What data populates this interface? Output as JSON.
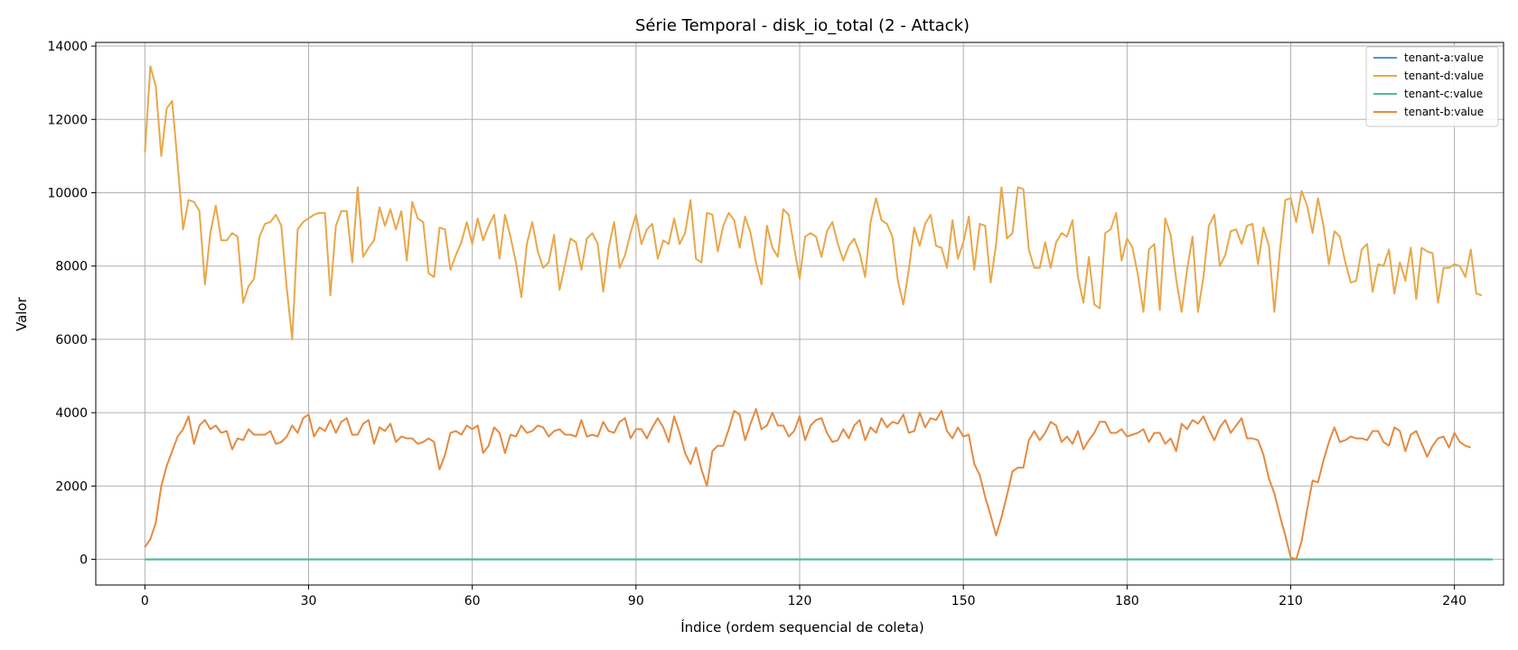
{
  "chart_data": {
    "type": "line",
    "title": "Série Temporal - disk_io_total (2 - Attack)",
    "xlabel": "Índice (ordem sequencial de coleta)",
    "ylabel": "Valor",
    "xlim": [
      -9,
      249
    ],
    "ylim": [
      -700,
      14100
    ],
    "xticks": [
      0,
      30,
      60,
      90,
      120,
      150,
      180,
      210,
      240
    ],
    "yticks": [
      0,
      2000,
      4000,
      6000,
      8000,
      10000,
      12000,
      14000
    ],
    "grid": true,
    "legend_position": "top-right",
    "series": [
      {
        "name": "tenant-a:value",
        "color": "#4c96d7",
        "x_start": 0,
        "x_step": 1,
        "values": [
          0,
          0,
          0,
          0,
          0,
          0,
          0,
          0,
          0,
          0,
          0,
          0,
          0,
          0,
          0,
          0,
          0,
          0,
          0,
          0,
          0,
          0,
          0,
          0,
          0,
          0,
          0,
          0,
          0,
          0,
          0,
          0,
          0,
          0,
          0,
          0,
          0,
          0,
          0,
          0,
          0,
          0,
          0,
          0,
          0,
          0,
          0,
          0,
          0,
          0,
          0,
          0,
          0,
          0,
          0,
          0,
          0,
          0,
          0,
          0,
          0,
          0,
          0,
          0,
          0,
          0,
          0,
          0,
          0,
          0,
          0,
          0,
          0,
          0,
          0,
          0,
          0,
          0,
          0,
          0,
          0,
          0,
          0,
          0,
          0,
          0,
          0,
          0,
          0,
          0,
          0,
          0,
          0,
          0,
          0,
          0,
          0,
          0,
          0,
          0,
          0,
          0,
          0,
          0,
          0,
          0,
          0,
          0,
          0,
          0,
          0,
          0,
          0,
          0,
          0,
          0,
          0,
          0,
          0,
          0,
          0,
          0,
          0,
          0,
          0,
          0,
          0,
          0,
          0,
          0,
          0,
          0,
          0,
          0,
          0,
          0,
          0,
          0,
          0,
          0,
          0,
          0,
          0,
          0,
          0,
          0,
          0,
          0,
          0,
          0,
          0,
          0,
          0,
          0,
          0,
          0,
          0,
          0,
          0,
          0,
          0,
          0,
          0,
          0,
          0,
          0,
          0,
          0,
          0,
          0,
          0,
          0,
          0,
          0,
          0,
          0,
          0,
          0,
          0,
          0,
          0,
          0,
          0,
          0,
          0,
          0,
          0,
          0,
          0,
          0,
          0,
          0,
          0,
          0,
          0,
          0,
          0,
          0,
          0,
          0,
          0,
          0,
          0,
          0,
          0,
          0,
          0,
          0,
          0,
          0,
          0,
          0,
          0,
          0,
          0,
          0,
          0,
          0,
          0,
          0,
          0,
          0,
          0,
          0,
          0,
          0,
          0,
          0,
          0,
          0,
          0,
          0,
          0,
          0,
          0,
          0,
          0,
          0,
          0,
          0,
          0,
          0,
          0,
          0,
          0,
          0,
          0,
          0
        ]
      },
      {
        "name": "tenant-d:value",
        "color": "#e8a84a",
        "x_start": 0,
        "x_step": 1,
        "values": [
          11100,
          13450,
          12900,
          11000,
          12300,
          12500,
          10800,
          9000,
          9800,
          9750,
          9500,
          7500,
          8900,
          9650,
          8700,
          8700,
          8900,
          8800,
          7000,
          7450,
          7650,
          8800,
          9150,
          9200,
          9400,
          9100,
          7400,
          6000,
          9000,
          9200,
          9300,
          9400,
          9450,
          9450,
          7200,
          9100,
          9500,
          9500,
          8100,
          10150,
          8250,
          8500,
          8700,
          9600,
          9100,
          9550,
          9000,
          9500,
          8150,
          9750,
          9300,
          9200,
          7800,
          7700,
          9050,
          9000,
          7900,
          8300,
          8650,
          9200,
          8600,
          9300,
          8700,
          9100,
          9400,
          8200,
          9400,
          8800,
          8100,
          7150,
          8600,
          9200,
          8400,
          7950,
          8100,
          8850,
          7350,
          8050,
          8750,
          8650,
          7900,
          8750,
          8900,
          8600,
          7300,
          8500,
          9200,
          7950,
          8300,
          8900,
          9400,
          8600,
          9000,
          9150,
          8200,
          8700,
          8600,
          9300,
          8600,
          8900,
          9800,
          8200,
          8100,
          9450,
          9400,
          8400,
          9100,
          9450,
          9250,
          8500,
          9350,
          8900,
          8100,
          7500,
          9100,
          8500,
          8250,
          9550,
          9400,
          8500,
          7650,
          8800,
          8900,
          8800,
          8250,
          8950,
          9200,
          8600,
          8150,
          8550,
          8750,
          8350,
          7700,
          9200,
          9850,
          9250,
          9150,
          8800,
          7600,
          6950,
          7900,
          9050,
          8550,
          9150,
          9400,
          8550,
          8500,
          7950,
          9250,
          8200,
          8650,
          9350,
          7900,
          9150,
          9100,
          7550,
          8600,
          10150,
          8750,
          8900,
          10150,
          10100,
          8450,
          7950,
          7950,
          8650,
          7950,
          8650,
          8900,
          8800,
          9250,
          7700,
          7000,
          8250,
          6950,
          6850,
          8900,
          9000,
          9450,
          8150,
          8750,
          8500,
          7750,
          6750,
          8450,
          8600,
          6800,
          9300,
          8850,
          7650,
          6750,
          7900,
          8800,
          6750,
          7700,
          9100,
          9400,
          8000,
          8300,
          8950,
          9000,
          8600,
          9100,
          9150,
          8050,
          9050,
          8550,
          6750,
          8400,
          9800,
          9850,
          9200,
          10050,
          9650,
          8900,
          9850,
          9100,
          8050,
          8950,
          8800,
          8100,
          7550,
          7600,
          8450,
          8600,
          7300,
          8050,
          8000,
          8450,
          7250,
          8100,
          7600,
          8500,
          7100,
          8500,
          8400,
          8350,
          7000,
          7950,
          7950,
          8050,
          8000,
          7700,
          8450,
          7250,
          7200
        ]
      },
      {
        "name": "tenant-c:value",
        "color": "#4dbf96",
        "x_start": 0,
        "x_step": 1,
        "values": [
          0,
          0,
          0,
          0,
          0,
          0,
          0,
          0,
          0,
          0,
          0,
          0,
          0,
          0,
          0,
          0,
          0,
          0,
          0,
          0,
          0,
          0,
          0,
          0,
          0,
          0,
          0,
          0,
          0,
          0,
          0,
          0,
          0,
          0,
          0,
          0,
          0,
          0,
          0,
          0,
          0,
          0,
          0,
          0,
          0,
          0,
          0,
          0,
          0,
          0,
          0,
          0,
          0,
          0,
          0,
          0,
          0,
          0,
          0,
          0,
          0,
          0,
          0,
          0,
          0,
          0,
          0,
          0,
          0,
          0,
          0,
          0,
          0,
          0,
          0,
          0,
          0,
          0,
          0,
          0,
          0,
          0,
          0,
          0,
          0,
          0,
          0,
          0,
          0,
          0,
          0,
          0,
          0,
          0,
          0,
          0,
          0,
          0,
          0,
          0,
          0,
          0,
          0,
          0,
          0,
          0,
          0,
          0,
          0,
          0,
          0,
          0,
          0,
          0,
          0,
          0,
          0,
          0,
          0,
          0,
          0,
          0,
          0,
          0,
          0,
          0,
          0,
          0,
          0,
          0,
          0,
          0,
          0,
          0,
          0,
          0,
          0,
          0,
          0,
          0,
          0,
          0,
          0,
          0,
          0,
          0,
          0,
          0,
          0,
          0,
          0,
          0,
          0,
          0,
          0,
          0,
          0,
          0,
          0,
          0,
          0,
          0,
          0,
          0,
          0,
          0,
          0,
          0,
          0,
          0,
          0,
          0,
          0,
          0,
          0,
          0,
          0,
          0,
          0,
          0,
          0,
          0,
          0,
          0,
          0,
          0,
          0,
          0,
          0,
          0,
          0,
          0,
          0,
          0,
          0,
          0,
          0,
          0,
          0,
          0,
          0,
          0,
          0,
          0,
          0,
          0,
          0,
          0,
          0,
          0,
          0,
          0,
          0,
          0,
          0,
          0,
          0,
          0,
          0,
          0,
          0,
          0,
          0,
          0,
          0,
          0,
          0,
          0,
          0,
          0,
          0,
          0,
          0,
          0,
          0,
          0,
          0,
          0,
          0,
          0,
          0,
          0,
          0,
          0,
          0,
          0,
          0,
          0
        ]
      },
      {
        "name": "tenant-b:value",
        "color": "#e38b43",
        "x_start": 0,
        "x_step": 1,
        "values": [
          330,
          550,
          1000,
          2000,
          2550,
          2950,
          3350,
          3550,
          3900,
          3150,
          3650,
          3800,
          3550,
          3650,
          3450,
          3500,
          3000,
          3300,
          3250,
          3550,
          3400,
          3400,
          3400,
          3500,
          3150,
          3200,
          3350,
          3650,
          3450,
          3850,
          3950,
          3350,
          3600,
          3500,
          3800,
          3450,
          3750,
          3850,
          3400,
          3400,
          3700,
          3800,
          3150,
          3600,
          3500,
          3700,
          3200,
          3350,
          3300,
          3300,
          3150,
          3200,
          3300,
          3200,
          2450,
          2850,
          3450,
          3500,
          3400,
          3650,
          3550,
          3650,
          2900,
          3100,
          3600,
          3450,
          2900,
          3400,
          3350,
          3650,
          3450,
          3500,
          3650,
          3600,
          3350,
          3500,
          3550,
          3400,
          3400,
          3350,
          3800,
          3350,
          3400,
          3350,
          3750,
          3500,
          3450,
          3750,
          3850,
          3300,
          3550,
          3550,
          3300,
          3600,
          3850,
          3600,
          3200,
          3900,
          3450,
          2900,
          2600,
          3050,
          2450,
          2000,
          2950,
          3100,
          3100,
          3550,
          4050,
          3950,
          3250,
          3700,
          4100,
          3550,
          3650,
          4000,
          3650,
          3650,
          3350,
          3500,
          3900,
          3250,
          3650,
          3800,
          3850,
          3450,
          3200,
          3250,
          3550,
          3300,
          3650,
          3800,
          3250,
          3600,
          3450,
          3850,
          3600,
          3750,
          3700,
          3950,
          3450,
          3500,
          4000,
          3600,
          3850,
          3800,
          4050,
          3500,
          3300,
          3600,
          3350,
          3400,
          2600,
          2300,
          1700,
          1200,
          650,
          1150,
          1750,
          2400,
          2500,
          2500,
          3250,
          3500,
          3250,
          3450,
          3750,
          3650,
          3200,
          3350,
          3150,
          3500,
          3000,
          3250,
          3450,
          3750,
          3750,
          3450,
          3450,
          3550,
          3350,
          3400,
          3450,
          3550,
          3200,
          3450,
          3450,
          3150,
          3300,
          2950,
          3700,
          3550,
          3800,
          3700,
          3900,
          3550,
          3250,
          3600,
          3800,
          3450,
          3650,
          3850,
          3300,
          3300,
          3250,
          2850,
          2200,
          1800,
          1200,
          650,
          50,
          0,
          500,
          1350,
          2150,
          2100,
          2700,
          3200,
          3600,
          3200,
          3250,
          3350,
          3300,
          3300,
          3250,
          3500,
          3500,
          3200,
          3100,
          3600,
          3500,
          2950,
          3400,
          3500,
          3150,
          2800,
          3100,
          3300,
          3350,
          3050,
          3450,
          3200,
          3100,
          3050
        ]
      }
    ]
  }
}
